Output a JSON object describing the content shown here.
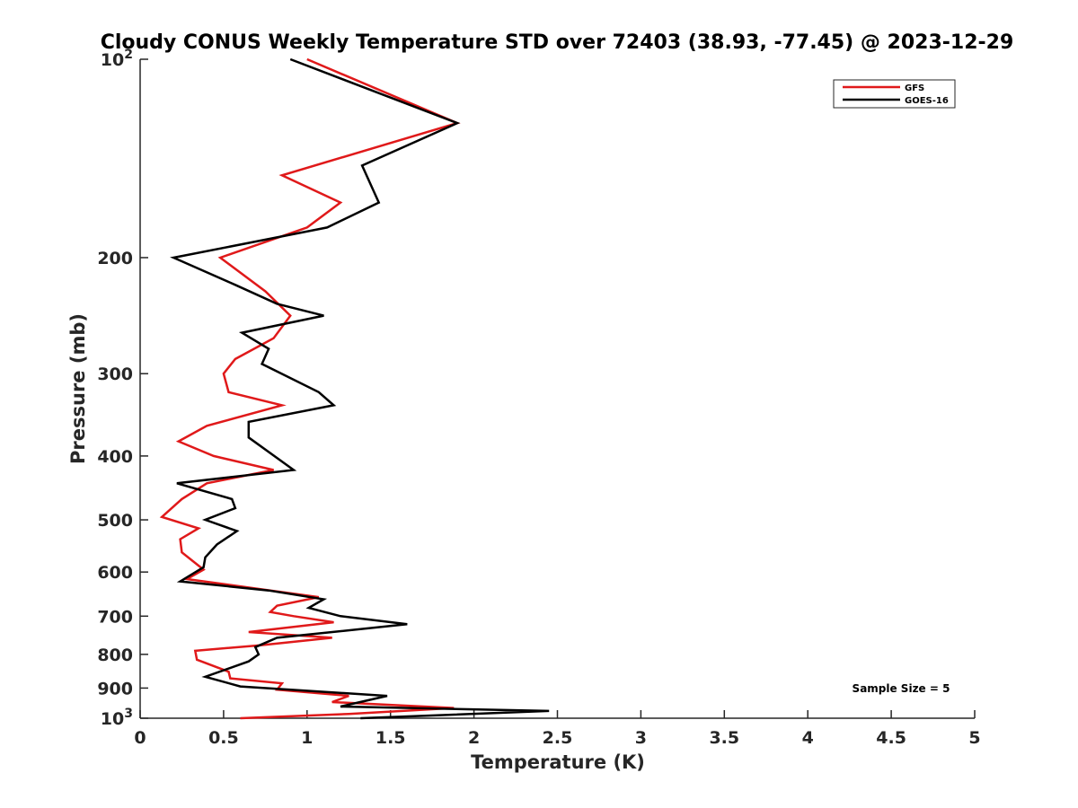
{
  "chart_data": {
    "type": "line",
    "title": "Cloudy CONUS Weekly Temperature STD over 72403 (38.93, -77.45) @ 2023-12-29",
    "xlabel": "Temperature (K)",
    "ylabel": "Pressure (mb)",
    "xlim": [
      0,
      5
    ],
    "ylim": [
      100,
      1000
    ],
    "y_scale": "log",
    "y_reversed": true,
    "grid": false,
    "legend_position": "top-right",
    "x_ticks": [
      {
        "value": 0,
        "label": "0"
      },
      {
        "value": 0.5,
        "label": "0.5"
      },
      {
        "value": 1,
        "label": "1"
      },
      {
        "value": 1.5,
        "label": "1.5"
      },
      {
        "value": 2,
        "label": "2"
      },
      {
        "value": 2.5,
        "label": "2.5"
      },
      {
        "value": 3,
        "label": "3"
      },
      {
        "value": 3.5,
        "label": "3.5"
      },
      {
        "value": 4,
        "label": "4"
      },
      {
        "value": 4.5,
        "label": "4.5"
      },
      {
        "value": 5,
        "label": "5"
      }
    ],
    "y_ticks": [
      {
        "value": 100,
        "base": "10",
        "exp": "2"
      },
      {
        "value": 200,
        "label": "200"
      },
      {
        "value": 300,
        "label": "300"
      },
      {
        "value": 400,
        "label": "400"
      },
      {
        "value": 500,
        "label": "500"
      },
      {
        "value": 600,
        "label": "600"
      },
      {
        "value": 700,
        "label": "700"
      },
      {
        "value": 800,
        "label": "800"
      },
      {
        "value": 900,
        "label": "900"
      },
      {
        "value": 1000,
        "base": "10",
        "exp": "3"
      }
    ],
    "annotation": "Sample Size = 5",
    "series": [
      {
        "name": "GFS",
        "color": "#e0191a",
        "points": [
          [
            1.0,
            100
          ],
          [
            1.9,
            125
          ],
          [
            0.85,
            150
          ],
          [
            1.2,
            165
          ],
          [
            1.0,
            180
          ],
          [
            0.48,
            200
          ],
          [
            0.75,
            225
          ],
          [
            0.9,
            245
          ],
          [
            0.8,
            265
          ],
          [
            0.57,
            285
          ],
          [
            0.5,
            300
          ],
          [
            0.53,
            320
          ],
          [
            0.85,
            335
          ],
          [
            0.4,
            360
          ],
          [
            0.23,
            380
          ],
          [
            0.44,
            400
          ],
          [
            0.8,
            420
          ],
          [
            0.4,
            440
          ],
          [
            0.25,
            465
          ],
          [
            0.13,
            495
          ],
          [
            0.35,
            515
          ],
          [
            0.24,
            535
          ],
          [
            0.25,
            560
          ],
          [
            0.38,
            595
          ],
          [
            0.28,
            615
          ],
          [
            0.78,
            640
          ],
          [
            1.07,
            655
          ],
          [
            0.82,
            675
          ],
          [
            0.78,
            690
          ],
          [
            0.92,
            700
          ],
          [
            1.16,
            715
          ],
          [
            0.65,
            740
          ],
          [
            1.15,
            755
          ],
          [
            0.72,
            775
          ],
          [
            0.33,
            790
          ],
          [
            0.34,
            815
          ],
          [
            0.53,
            850
          ],
          [
            0.54,
            870
          ],
          [
            0.85,
            885
          ],
          [
            0.82,
            905
          ],
          [
            1.25,
            925
          ],
          [
            1.15,
            945
          ],
          [
            1.88,
            965
          ],
          [
            1.25,
            985
          ],
          [
            0.6,
            1000
          ]
        ]
      },
      {
        "name": "GOES-16",
        "color": "#000000",
        "points": [
          [
            0.9,
            100
          ],
          [
            1.9,
            125
          ],
          [
            1.33,
            145
          ],
          [
            1.43,
            165
          ],
          [
            1.12,
            180
          ],
          [
            0.2,
            200
          ],
          [
            0.57,
            220
          ],
          [
            0.82,
            235
          ],
          [
            1.1,
            245
          ],
          [
            0.61,
            260
          ],
          [
            0.77,
            275
          ],
          [
            0.73,
            290
          ],
          [
            1.07,
            320
          ],
          [
            1.16,
            335
          ],
          [
            0.65,
            355
          ],
          [
            0.65,
            375
          ],
          [
            0.92,
            420
          ],
          [
            0.22,
            440
          ],
          [
            0.55,
            465
          ],
          [
            0.57,
            480
          ],
          [
            0.39,
            500
          ],
          [
            0.58,
            520
          ],
          [
            0.46,
            545
          ],
          [
            0.39,
            570
          ],
          [
            0.38,
            590
          ],
          [
            0.24,
            620
          ],
          [
            0.77,
            640
          ],
          [
            1.1,
            660
          ],
          [
            1.01,
            680
          ],
          [
            1.2,
            700
          ],
          [
            1.6,
            720
          ],
          [
            0.82,
            755
          ],
          [
            0.69,
            780
          ],
          [
            0.71,
            800
          ],
          [
            0.65,
            820
          ],
          [
            0.39,
            865
          ],
          [
            0.6,
            895
          ],
          [
            1.48,
            925
          ],
          [
            1.2,
            960
          ],
          [
            2.45,
            975
          ],
          [
            1.32,
            1000
          ]
        ]
      }
    ]
  }
}
